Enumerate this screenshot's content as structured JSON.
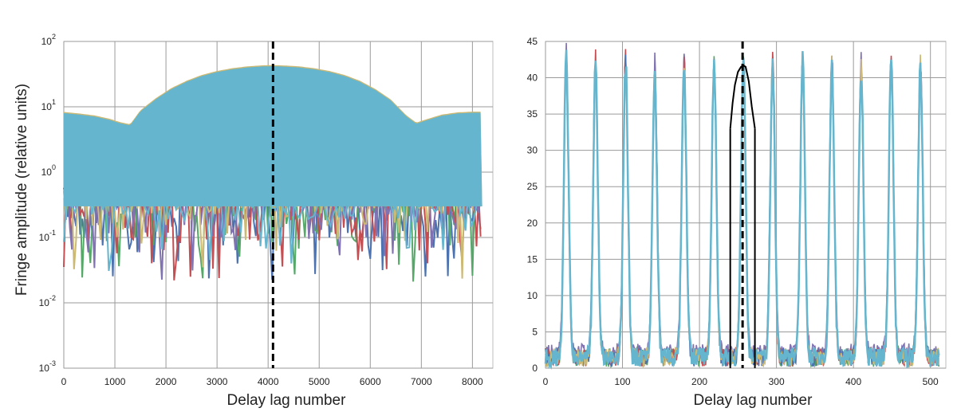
{
  "chart_data": [
    {
      "type": "line",
      "xlabel": "Delay lag number",
      "ylabel": "Fringe amplitude (relative units)",
      "xlim": [
        0,
        8400
      ],
      "ylim": [
        0.001,
        100
      ],
      "yscale": "log",
      "grid": true,
      "x_ticks": [
        0,
        1000,
        2000,
        3000,
        4000,
        5000,
        6000,
        7000,
        8000
      ],
      "x_tick_labels": [
        "0",
        "1000",
        "2000",
        "3000",
        "4000",
        "5000",
        "6000",
        "7000",
        "8000"
      ],
      "y_ticks": [
        0.001,
        0.01,
        0.1,
        1,
        10,
        100
      ],
      "y_tick_labels": [
        {
          "base": "10",
          "exp": "-3"
        },
        {
          "base": "10",
          "exp": "-2"
        },
        {
          "base": "10",
          "exp": "-1"
        },
        {
          "base": "10",
          "exp": "0"
        },
        {
          "base": "10",
          "exp": "1"
        },
        {
          "base": "10",
          "exp": "2"
        }
      ],
      "envelope": {
        "x": [
          0,
          300,
          600,
          900,
          1100,
          1300,
          1500,
          1800,
          2100,
          2400,
          2700,
          3000,
          3300,
          3600,
          3900,
          4100,
          4300,
          4600,
          4900,
          5200,
          5500,
          5800,
          6100,
          6400,
          6700,
          6900,
          7100,
          7400,
          7700,
          8000,
          8191
        ],
        "top": [
          8,
          7.6,
          7.1,
          6.3,
          5.6,
          5.2,
          8.5,
          13,
          18.5,
          24,
          29.5,
          34,
          37.5,
          40,
          41.5,
          41.7,
          41.3,
          40,
          37.5,
          34,
          29.5,
          24,
          18,
          12.5,
          7.2,
          5.5,
          6.2,
          7.3,
          7.9,
          8.1,
          8.1
        ],
        "bottom": 0.3
      },
      "marker_x": 4096,
      "series_colors": [
        "#4c72b0",
        "#55a868",
        "#c44e52",
        "#8172b2",
        "#ccb974",
        "#64b5cd"
      ]
    },
    {
      "type": "line",
      "xlabel": "Delay lag number",
      "ylabel": "",
      "xlim": [
        0,
        520
      ],
      "ylim": [
        0,
        45
      ],
      "grid": true,
      "x_ticks": [
        0,
        100,
        200,
        300,
        400,
        500
      ],
      "x_tick_labels": [
        "0",
        "100",
        "200",
        "300",
        "400",
        "500"
      ],
      "y_ticks": [
        0,
        5,
        10,
        15,
        20,
        25,
        30,
        35,
        40,
        45
      ],
      "y_tick_labels": [
        "0",
        "5",
        "10",
        "15",
        "20",
        "25",
        "30",
        "35",
        "40",
        "45"
      ],
      "peaks": {
        "x": [
          27,
          65,
          104,
          142,
          180,
          219,
          257,
          295,
          334,
          372,
          410,
          449,
          487
        ],
        "heights": [
          41.5,
          41.3,
          41.2,
          40,
          41,
          41.2,
          41.6,
          41.8,
          41.3,
          41.2,
          40,
          41.3,
          41.3
        ],
        "width": 3,
        "baseline": 1.5
      },
      "window": {
        "x": [
          240,
          243,
          246,
          250,
          254,
          257,
          260,
          264,
          268,
          272
        ],
        "y": [
          33,
          36.5,
          39,
          40.8,
          41.5,
          41.7,
          41.5,
          39.5,
          36,
          33
        ]
      },
      "marker_x": 256,
      "series_colors": [
        "#4c72b0",
        "#55a868",
        "#c44e52",
        "#8172b2",
        "#ccb974",
        "#64b5cd"
      ]
    }
  ]
}
